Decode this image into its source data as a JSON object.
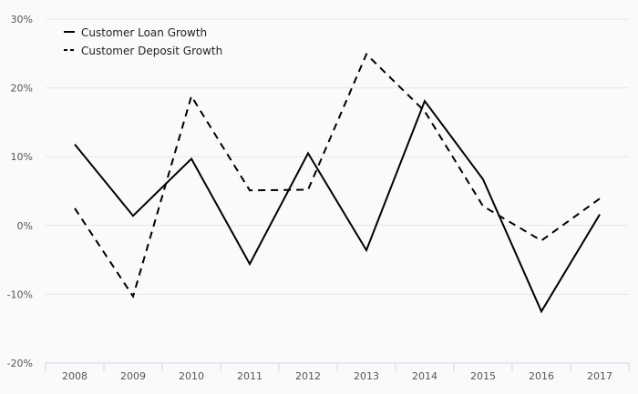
{
  "chart_data": {
    "type": "line",
    "title": "",
    "xlabel": "",
    "ylabel": "",
    "categories": [
      "2008",
      "2009",
      "2010",
      "2011",
      "2012",
      "2013",
      "2014",
      "2015",
      "2016",
      "2017"
    ],
    "ylim": [
      -20,
      30
    ],
    "yticks": [
      -20,
      -10,
      0,
      10,
      20,
      30
    ],
    "ytick_labels": [
      "-20%",
      "-10%",
      "0%",
      "10%",
      "20%",
      "30%"
    ],
    "grid": "horizontal",
    "legend_position": "top-left",
    "series": [
      {
        "name": "Customer Loan Growth",
        "style": "solid",
        "color": "#000000",
        "values": [
          11.8,
          1.4,
          9.7,
          -5.6,
          10.5,
          -3.6,
          18.1,
          6.7,
          -12.5,
          1.6
        ]
      },
      {
        "name": "Customer Deposit Growth",
        "style": "dashed",
        "color": "#000000",
        "values": [
          2.5,
          -10.3,
          18.8,
          5.1,
          5.2,
          24.9,
          16.6,
          2.8,
          -2.2,
          3.9
        ]
      }
    ]
  }
}
